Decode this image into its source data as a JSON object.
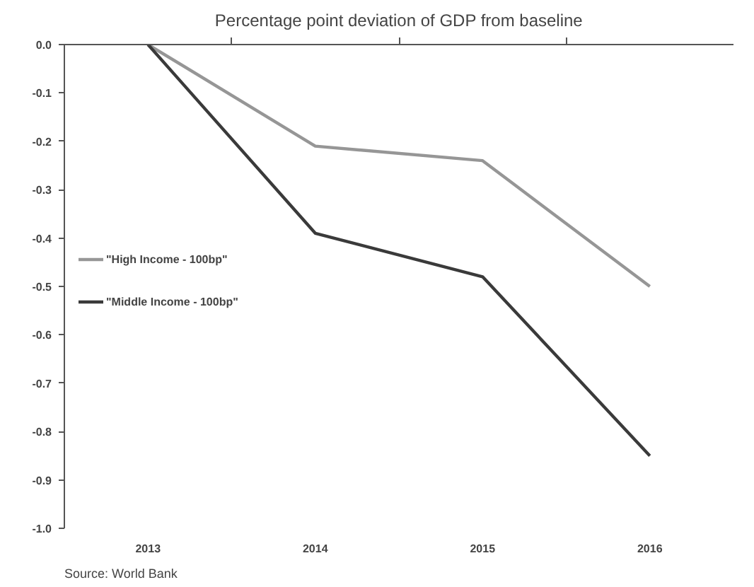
{
  "chart_data": {
    "type": "line",
    "title": "Percentage point deviation of GDP from baseline",
    "categories": [
      "2013",
      "2014",
      "2015",
      "2016"
    ],
    "series": [
      {
        "name": "\"High Income - 100bp\"",
        "color": "#969696",
        "values": [
          0.0,
          -0.21,
          -0.24,
          -0.5
        ]
      },
      {
        "name": "\"Middle Income - 100bp\"",
        "color": "#3a3a3a",
        "values": [
          0.0,
          -0.39,
          -0.48,
          -0.85
        ]
      }
    ],
    "ylim": [
      -1.0,
      0.0
    ],
    "yticks": [
      {
        "value": 0,
        "label": "0.0"
      },
      -0.1,
      -0.2,
      -0.3,
      -0.4,
      -0.5,
      -0.6,
      -0.7,
      -0.8,
      -0.9,
      {
        "value": -1,
        "label": "-1.0"
      }
    ],
    "grid": false,
    "legend": "left",
    "line_style": "solid",
    "marker": "none",
    "annotations": [
      "Source: World Bank"
    ]
  }
}
